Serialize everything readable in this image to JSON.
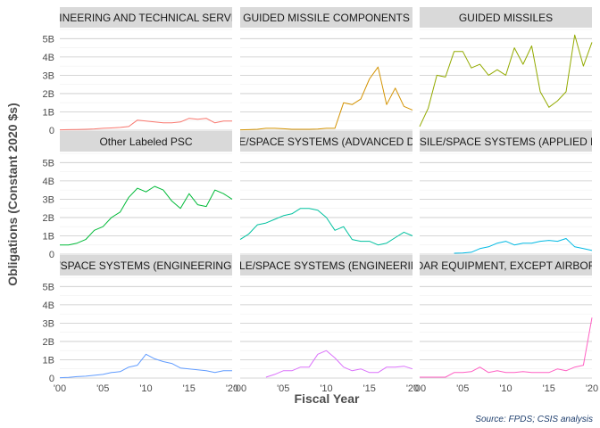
{
  "chart_data": {
    "type": "line",
    "facet_layout": "3x3",
    "xlabel": "Fiscal Year",
    "ylabel": "Obligations (Constant 2020 $s)",
    "caption": "Source: FPDS; CSIS analysis",
    "xlim": [
      2000,
      2020
    ],
    "ylim": [
      0,
      5.6
    ],
    "x_ticks": [
      2000,
      2005,
      2010,
      2015,
      2020
    ],
    "x_tick_labels": [
      "'00",
      "'05",
      "'10",
      "'15",
      "'20"
    ],
    "y_ticks": [
      0,
      1,
      2,
      3,
      4,
      5
    ],
    "y_tick_labels": [
      "0",
      "1B",
      "2B",
      "3B",
      "4B",
      "5B"
    ],
    "grid": true,
    "legend": "none",
    "panels": [
      {
        "title": "ENGINEERING AND TECHNICAL SERVICES",
        "color": "#F8766D",
        "x": [
          2000,
          2001,
          2002,
          2003,
          2004,
          2005,
          2006,
          2007,
          2008,
          2009,
          2010,
          2011,
          2012,
          2013,
          2014,
          2015,
          2016,
          2017,
          2018,
          2019,
          2020
        ],
        "y": [
          0.02,
          0.03,
          0.04,
          0.05,
          0.07,
          0.1,
          0.12,
          0.15,
          0.2,
          0.55,
          0.5,
          0.45,
          0.4,
          0.4,
          0.45,
          0.65,
          0.6,
          0.65,
          0.4,
          0.5,
          0.5
        ]
      },
      {
        "title": "GUIDED MISSILE COMPONENTS",
        "color": "#D39200",
        "x": [
          2000,
          2001,
          2002,
          2003,
          2004,
          2005,
          2006,
          2007,
          2008,
          2009,
          2010,
          2011,
          2012,
          2013,
          2014,
          2015,
          2016,
          2017,
          2018,
          2019,
          2020
        ],
        "y": [
          0.02,
          0.03,
          0.05,
          0.1,
          0.1,
          0.08,
          0.05,
          0.05,
          0.05,
          0.06,
          0.1,
          0.1,
          1.5,
          1.4,
          1.7,
          2.8,
          3.45,
          1.4,
          2.3,
          1.3,
          1.1
        ]
      },
      {
        "title": "GUIDED MISSILES",
        "color": "#93AA00",
        "x": [
          2000,
          2001,
          2002,
          2003,
          2004,
          2005,
          2006,
          2007,
          2008,
          2009,
          2010,
          2011,
          2012,
          2013,
          2014,
          2015,
          2016,
          2017,
          2018,
          2019,
          2020
        ],
        "y": [
          0.2,
          1.2,
          3.0,
          2.9,
          4.3,
          4.3,
          3.4,
          3.6,
          3.0,
          3.3,
          3.0,
          4.5,
          3.6,
          4.6,
          2.1,
          1.25,
          1.6,
          2.1,
          5.2,
          3.5,
          4.8
        ]
      },
      {
        "title": "Other Labeled PSC",
        "color": "#00BA38",
        "x": [
          2000,
          2001,
          2002,
          2003,
          2004,
          2005,
          2006,
          2007,
          2008,
          2009,
          2010,
          2011,
          2012,
          2013,
          2014,
          2015,
          2016,
          2017,
          2018,
          2019,
          2020
        ],
        "y": [
          0.5,
          0.5,
          0.6,
          0.8,
          1.3,
          1.5,
          2.0,
          2.3,
          3.1,
          3.6,
          3.4,
          3.7,
          3.5,
          2.9,
          2.5,
          3.3,
          2.7,
          2.6,
          3.5,
          3.3,
          3.0
        ]
      },
      {
        "title": "RDT&E: MISSILE/SPACE SYSTEMS (ADVANCED DEVELOPMENT)",
        "color": "#00C19F",
        "x": [
          2000,
          2001,
          2002,
          2003,
          2004,
          2005,
          2006,
          2007,
          2008,
          2009,
          2010,
          2011,
          2012,
          2013,
          2014,
          2015,
          2016,
          2017,
          2018,
          2019,
          2020
        ],
        "y": [
          0.8,
          1.1,
          1.6,
          1.7,
          1.9,
          2.1,
          2.2,
          2.5,
          2.5,
          2.4,
          2.0,
          1.3,
          1.5,
          0.8,
          0.7,
          0.7,
          0.5,
          0.6,
          0.9,
          1.2,
          1.0
        ]
      },
      {
        "title": "RDT&E: MISSILE/SPACE SYSTEMS (APPLIED RESEARCH)",
        "color": "#00B9E3",
        "x": [
          2004,
          2005,
          2006,
          2007,
          2008,
          2009,
          2010,
          2011,
          2012,
          2013,
          2014,
          2015,
          2016,
          2017,
          2018,
          2019,
          2020
        ],
        "y": [
          0.05,
          0.06,
          0.1,
          0.3,
          0.4,
          0.6,
          0.7,
          0.5,
          0.6,
          0.6,
          0.7,
          0.75,
          0.7,
          0.85,
          0.4,
          0.3,
          0.2
        ]
      },
      {
        "title": "RDT&E: MISSILE/SPACE SYSTEMS (ENGINEERING DEVELOPMENT)",
        "color": "#619CFF",
        "x": [
          2000,
          2001,
          2002,
          2003,
          2004,
          2005,
          2006,
          2007,
          2008,
          2009,
          2010,
          2011,
          2012,
          2013,
          2014,
          2015,
          2016,
          2017,
          2018,
          2019,
          2020
        ],
        "y": [
          0.02,
          0.04,
          0.08,
          0.1,
          0.15,
          0.2,
          0.3,
          0.35,
          0.6,
          0.7,
          1.3,
          1.05,
          0.9,
          0.8,
          0.55,
          0.5,
          0.45,
          0.4,
          0.3,
          0.4,
          0.4
        ]
      },
      {
        "title": "RDT&E: MISSILE/SPACE SYSTEMS (ENGINEERING SUPPORT)",
        "color": "#DB72FB",
        "x": [
          2003,
          2004,
          2005,
          2006,
          2007,
          2008,
          2009,
          2010,
          2011,
          2012,
          2013,
          2014,
          2015,
          2016,
          2017,
          2018,
          2019,
          2020
        ],
        "y": [
          0.05,
          0.2,
          0.4,
          0.4,
          0.6,
          0.6,
          1.3,
          1.5,
          1.1,
          0.6,
          0.4,
          0.5,
          0.3,
          0.3,
          0.6,
          0.6,
          0.65,
          0.5
        ]
      },
      {
        "title": "RADAR EQUIPMENT, EXCEPT AIRBORNE",
        "color": "#FF61C3",
        "x": [
          2000,
          2001,
          2002,
          2003,
          2004,
          2005,
          2006,
          2007,
          2008,
          2009,
          2010,
          2011,
          2012,
          2013,
          2014,
          2015,
          2016,
          2017,
          2018,
          2019,
          2020
        ],
        "y": [
          0.05,
          0.05,
          0.05,
          0.05,
          0.3,
          0.3,
          0.35,
          0.6,
          0.3,
          0.4,
          0.3,
          0.3,
          0.35,
          0.3,
          0.3,
          0.3,
          0.5,
          0.4,
          0.6,
          0.7,
          3.3
        ]
      }
    ]
  }
}
